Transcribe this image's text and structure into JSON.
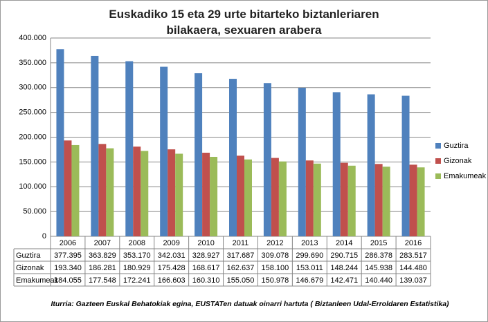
{
  "chart_data": {
    "type": "bar",
    "title": "Euskadiko 15 eta 29 urte bitarteko biztanleriaren bilakaera, sexuaren arabera",
    "source": "Iturria: Gazteen Euskal Behatokiak egina, EUSTATen datuak oinarri hartuta ( Biztanleen Udal-Erroldaren Estatistika)",
    "categories": [
      "2006",
      "2007",
      "2008",
      "2009",
      "2010",
      "2011",
      "2012",
      "2013",
      "2014",
      "2015",
      "2016"
    ],
    "series": [
      {
        "name": "Guztira",
        "color": "#4f81bd",
        "values": [
          377395,
          363829,
          353170,
          342031,
          328927,
          317687,
          309078,
          299690,
          290715,
          286378,
          283517
        ],
        "value_labels": [
          "377.395",
          "363.829",
          "353.170",
          "342.031",
          "328.927",
          "317.687",
          "309.078",
          "299.690",
          "290.715",
          "286.378",
          "283.517"
        ]
      },
      {
        "name": "Gizonak",
        "color": "#c0504d",
        "values": [
          193340,
          186281,
          180929,
          175428,
          168617,
          162637,
          158100,
          153011,
          148244,
          145938,
          144480
        ],
        "value_labels": [
          "193.340",
          "186.281",
          "180.929",
          "175.428",
          "168.617",
          "162.637",
          "158.100",
          "153.011",
          "148.244",
          "145.938",
          "144.480"
        ]
      },
      {
        "name": "Emakumeak",
        "color": "#9bbb59",
        "values": [
          184055,
          177548,
          172241,
          166603,
          160310,
          155050,
          150978,
          146679,
          142471,
          140440,
          139037
        ],
        "value_labels": [
          "184.055",
          "177.548",
          "172.241",
          "166.603",
          "160.310",
          "155.050",
          "150.978",
          "146.679",
          "142.471",
          "140.440",
          "139.037"
        ]
      }
    ],
    "ylim": [
      0,
      400000
    ],
    "yticks": [
      0,
      {
        "value": 50000,
        "label": "50.000"
      },
      {
        "value": 100000,
        "label": "100.000"
      },
      {
        "value": 150000,
        "label": "150.000"
      },
      {
        "value": 200000,
        "label": "200.000"
      },
      {
        "value": 250000,
        "label": "250.000"
      },
      {
        "value": 300000,
        "label": "300.000"
      },
      {
        "value": 350000,
        "label": "350.000"
      },
      {
        "value": 400000,
        "label": "400.000"
      }
    ],
    "grid": true,
    "legend": "right"
  }
}
